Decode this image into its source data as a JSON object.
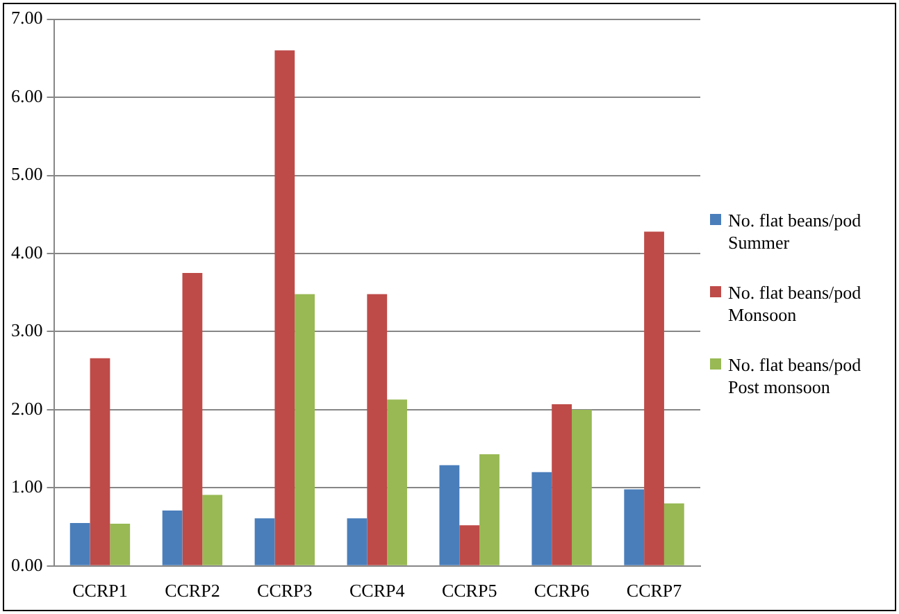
{
  "chart_data": {
    "type": "bar",
    "categories": [
      "CCRP1",
      "CCRP2",
      "CCRP3",
      "CCRP4",
      "CCRP5",
      "CCRP6",
      "CCRP7"
    ],
    "series": [
      {
        "name": "No. flat beans/pod Summer",
        "color": "#4a7ebb",
        "values": [
          0.55,
          0.71,
          0.61,
          0.61,
          1.29,
          1.2,
          0.98
        ]
      },
      {
        "name": "No. flat beans/pod Monsoon",
        "color": "#be4b48",
        "values": [
          2.66,
          3.75,
          6.6,
          3.48,
          0.52,
          2.07,
          4.28
        ]
      },
      {
        "name": "No. flat beans/pod Post monsoon",
        "color": "#98b954",
        "values": [
          0.54,
          0.91,
          3.48,
          2.13,
          1.43,
          2.0,
          0.8
        ]
      }
    ],
    "ylim": [
      0,
      7
    ],
    "yticks": [
      {
        "value": 0,
        "label": "0.00"
      },
      {
        "value": 1,
        "label": "1.00"
      },
      {
        "value": 2,
        "label": "2.00"
      },
      {
        "value": 3,
        "label": "3.00"
      },
      {
        "value": 4,
        "label": "4.00"
      },
      {
        "value": 5,
        "label": "5.00"
      },
      {
        "value": 6,
        "label": "6.00"
      },
      {
        "value": 7,
        "label": "7.00"
      }
    ],
    "grid": "y",
    "legend": "right"
  }
}
